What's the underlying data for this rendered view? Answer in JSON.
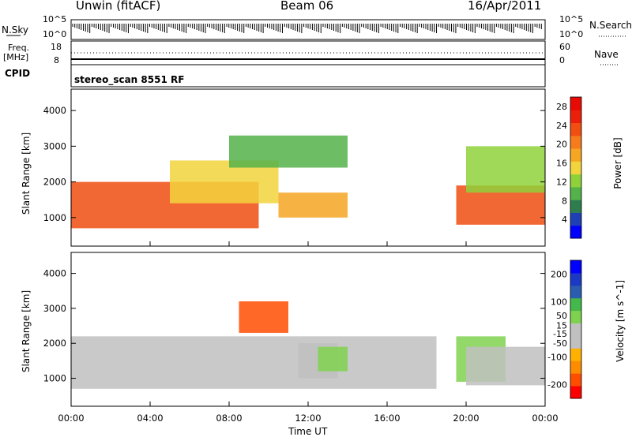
{
  "header": {
    "station": "Unwin (fitACF)",
    "beam": "Beam 06",
    "date": "16/Apr/2011"
  },
  "top_panel": {
    "nsky_label": "N.Sky",
    "nsky_ticks": [
      "10^5",
      "10^0"
    ],
    "nsearch_label": "N.Search",
    "nsearch_ticks": [
      "10^5",
      "10^0"
    ],
    "freq_label": "Freq.",
    "freq_unit": "[MHz]",
    "freq_ticks": [
      "18",
      "8"
    ],
    "nave_label": "Nave",
    "nave_ticks": [
      "60",
      "0"
    ],
    "cpid_label": "CPID",
    "cpid_value": "stereo_scan 8551 RF"
  },
  "colors": {
    "power_scale": [
      "#0000ff",
      "#1f3fb5",
      "#2e7d4f",
      "#53b24a",
      "#8fd139",
      "#f2d43c",
      "#f5a623",
      "#f57b1c",
      "#f04e12",
      "#ec1f0b",
      "#e80a05"
    ],
    "velocity_scale": [
      "#ff0000",
      "#ff4d00",
      "#ff8c00",
      "#ffb100",
      "#c0c0c0",
      "#c0c0c0",
      "#7fd24f",
      "#44b84a",
      "#2a5db0",
      "#1c39c6",
      "#0000ff"
    ],
    "ground_scatter": "#c0c0c0"
  },
  "chart_data": [
    {
      "type": "heatmap",
      "title": "",
      "ylabel": "Slant Range [km]",
      "xlabel": "",
      "x_ticks": [
        "00:00",
        "04:00",
        "08:00",
        "12:00",
        "16:00",
        "20:00",
        "00:00"
      ],
      "y_ticks": [
        1000,
        2000,
        3000,
        4000
      ],
      "ylim": [
        200,
        4600
      ],
      "colorbar": {
        "label": "Power [dB]",
        "ticks": [
          4,
          8,
          12,
          16,
          20,
          24,
          28
        ],
        "range": [
          0,
          30
        ]
      },
      "regions": [
        {
          "t0": 0.0,
          "t1": 9.5,
          "r0": 700,
          "r1": 2000,
          "value": 22
        },
        {
          "t0": 5.0,
          "t1": 10.5,
          "r0": 1400,
          "r1": 2600,
          "value": 16
        },
        {
          "t0": 8.0,
          "t1": 14.0,
          "r0": 2400,
          "r1": 3300,
          "value": 10
        },
        {
          "t0": 10.5,
          "t1": 14.0,
          "r0": 1000,
          "r1": 1700,
          "value": 18
        },
        {
          "t0": 19.5,
          "t1": 24.0,
          "r0": 800,
          "r1": 1900,
          "value": 22
        },
        {
          "t0": 20.0,
          "t1": 24.0,
          "r0": 1700,
          "r1": 3000,
          "value": 12
        }
      ]
    },
    {
      "type": "heatmap",
      "title": "",
      "ylabel": "Slant Range [km]",
      "xlabel": "Time UT",
      "x_ticks": [
        "00:00",
        "04:00",
        "08:00",
        "12:00",
        "16:00",
        "20:00",
        "00:00"
      ],
      "y_ticks": [
        1000,
        2000,
        3000,
        4000
      ],
      "ylim": [
        200,
        4600
      ],
      "colorbar": {
        "label": "Velocity [m s^-1]",
        "ticks": [
          -200,
          -100,
          -50,
          -15,
          15,
          50,
          100,
          200
        ],
        "range": [
          -250,
          250
        ]
      },
      "regions": [
        {
          "t0": 0.0,
          "t1": 18.5,
          "r0": 700,
          "r1": 2200,
          "value": 0
        },
        {
          "t0": 8.5,
          "t1": 11.0,
          "r0": 2300,
          "r1": 3200,
          "value": -200
        },
        {
          "t0": 11.5,
          "t1": 13.5,
          "r0": 1000,
          "r1": 2000,
          "value": -60
        },
        {
          "t0": 12.5,
          "t1": 14.0,
          "r0": 1200,
          "r1": 1900,
          "value": 40
        },
        {
          "t0": 19.5,
          "t1": 22.0,
          "r0": 900,
          "r1": 2200,
          "value": 40
        },
        {
          "t0": 20.0,
          "t1": 24.0,
          "r0": 800,
          "r1": 1900,
          "value": 0
        }
      ]
    }
  ]
}
